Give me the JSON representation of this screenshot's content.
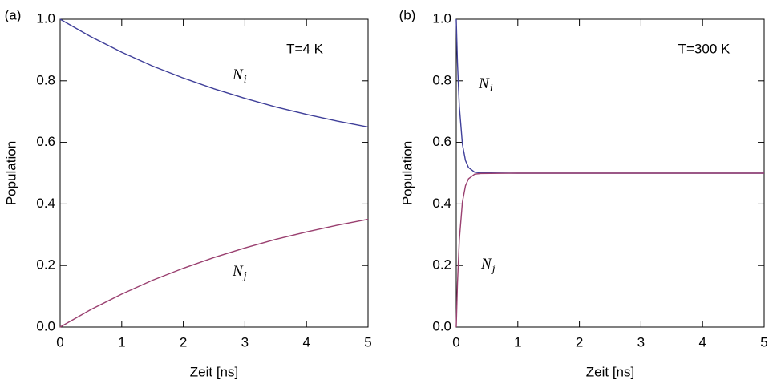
{
  "chart_data": [
    {
      "type": "line",
      "panel": "(a)",
      "xlabel": "Zeit [ns]",
      "ylabel": "Population",
      "x": [
        0,
        0.5,
        1,
        1.5,
        2,
        2.5,
        3,
        3.5,
        4,
        4.5,
        5
      ],
      "series": [
        {
          "color": "#40409a",
          "values": [
            1,
            0.943,
            0.893,
            0.848,
            0.809,
            0.774,
            0.743,
            0.715,
            0.691,
            0.669,
            0.65
          ]
        },
        {
          "color": "#9a4070",
          "values": [
            0,
            0.057,
            0.107,
            0.152,
            0.191,
            0.226,
            0.257,
            0.285,
            0.309,
            0.331,
            0.35
          ]
        }
      ],
      "annotations": [
        {
          "text": "T=4 K"
        },
        {
          "text": "N",
          "sub": "i"
        },
        {
          "text": "N",
          "sub": "j"
        }
      ],
      "xlim": [
        0,
        5
      ],
      "xticks": [
        0,
        1,
        2,
        3,
        4,
        5
      ],
      "ylim": [
        0,
        1
      ],
      "yticks": [
        {
          "value": 0,
          "label": "0.0"
        },
        {
          "value": 0.2,
          "label": "0.2"
        },
        {
          "value": 0.4,
          "label": "0.4"
        },
        {
          "value": 0.6,
          "label": "0.6"
        },
        {
          "value": 0.8,
          "label": "0.8"
        },
        {
          "value": 1,
          "label": "1.0"
        }
      ]
    },
    {
      "type": "line",
      "panel": "(b)",
      "xlabel": "Zeit [ns]",
      "ylabel": "Population",
      "x": [
        0,
        0.02,
        0.05,
        0.1,
        0.15,
        0.2,
        0.3,
        0.4,
        1,
        2,
        3,
        4,
        5
      ],
      "series": [
        {
          "color": "#40409a",
          "values": [
            1,
            0.858,
            0.717,
            0.594,
            0.541,
            0.518,
            0.503,
            0.501,
            0.5,
            0.5,
            0.5,
            0.5,
            0.5
          ]
        },
        {
          "color": "#9a4070",
          "values": [
            0,
            0.142,
            0.283,
            0.406,
            0.459,
            0.482,
            0.497,
            0.499,
            0.5,
            0.5,
            0.5,
            0.5,
            0.5
          ]
        }
      ],
      "annotations": [
        {
          "text": "T=300 K"
        },
        {
          "text": "N",
          "sub": "i"
        },
        {
          "text": "N",
          "sub": "j"
        }
      ],
      "xlim": [
        0,
        5
      ],
      "xticks": [
        0,
        1,
        2,
        3,
        4,
        5
      ],
      "ylim": [
        0,
        1
      ],
      "yticks": [
        {
          "value": 0,
          "label": "0.0"
        },
        {
          "value": 0.2,
          "label": "0.2"
        },
        {
          "value": 0.4,
          "label": "0.4"
        },
        {
          "value": 0.6,
          "label": "0.6"
        },
        {
          "value": 0.8,
          "label": "0.8"
        },
        {
          "value": 1,
          "label": "1.0"
        }
      ]
    }
  ]
}
